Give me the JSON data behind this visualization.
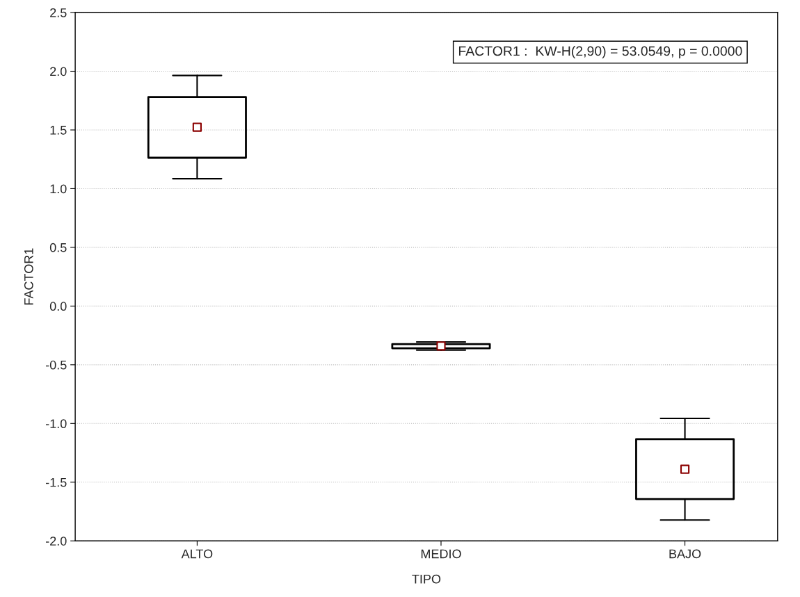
{
  "chart_data": {
    "type": "box",
    "xlabel": "TIPO",
    "ylabel": "FACTOR1",
    "categories": [
      "ALTO",
      "MEDIO",
      "BAJO"
    ],
    "boxes": [
      {
        "low": 1.085,
        "q1": 1.263,
        "q3": 1.78,
        "high": 1.964
      },
      {
        "low": -0.375,
        "q1": -0.359,
        "q3": -0.324,
        "high": -0.306
      },
      {
        "low": -1.822,
        "q1": -1.644,
        "q3": -1.133,
        "high": -0.957
      }
    ],
    "color": "#000000",
    "series": [
      {
        "type": "scatter",
        "color": "#8b0000",
        "x": [
          "ALTO",
          "MEDIO",
          "BAJO"
        ],
        "values": [
          1.523,
          -0.34,
          -1.39
        ],
        "marker": "square"
      }
    ],
    "ylim": [
      -2.0,
      2.5
    ],
    "yticks": [
      {
        "value": -2.0,
        "label": "-2.0"
      },
      {
        "value": -1.5,
        "label": "-1.5"
      },
      {
        "value": -1.0,
        "label": "-1.0"
      },
      {
        "value": -0.5,
        "label": "-0.5"
      },
      {
        "value": 0.0,
        "label": "0.0"
      },
      {
        "value": 0.5,
        "label": "0.5"
      },
      {
        "value": 1.0,
        "label": "1.0"
      },
      {
        "value": 1.5,
        "label": "1.5"
      },
      {
        "value": 2.0,
        "label": "2.0"
      },
      {
        "value": 2.5,
        "label": "2.5"
      }
    ],
    "grid": "y",
    "annotations": [
      "FACTOR1 :  KW-H(2,90) = 53.0549, p = 0.0000"
    ]
  }
}
